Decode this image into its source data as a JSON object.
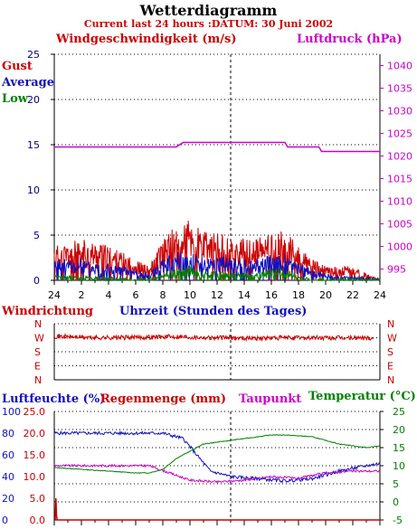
{
  "title": "Wetterdiagramm",
  "subtitle": "Current last 24 hours :DATUM: 30 Juni 2002",
  "colors": {
    "gust": "#cc0000",
    "average": "#1010c0",
    "low": "#008000",
    "pressure": "#cc00cc",
    "axis_left": "#000080",
    "axis_right": "#cc00cc",
    "humidity": "#1010c0",
    "rain": "#cc0000",
    "dew": "#cc00cc",
    "temp": "#008000"
  },
  "wind_panel": {
    "left_label": "Windgeschwindigkeit (m/s)",
    "right_label": "Luftdruck (hPa)",
    "legend": [
      "Gust",
      "Average",
      "Low"
    ],
    "y_ticks": [
      "25",
      "20",
      "15",
      "10",
      "5",
      "0"
    ],
    "p_ticks": [
      "1040",
      "1035",
      "1030",
      "1025",
      "1020",
      "1015",
      "1010",
      "1005",
      "1000",
      "995"
    ],
    "x_ticks": [
      "24",
      "2",
      "4",
      "6",
      "8",
      "10",
      "12",
      "14",
      "16",
      "18",
      "20",
      "22",
      "24"
    ]
  },
  "direction_panel": {
    "left_label": "Windrichtung",
    "center_label": "Uhrzeit (Stunden des Tages)",
    "dir_ticks": [
      "N",
      "W",
      "S",
      "E",
      "N"
    ]
  },
  "humidity_panel": {
    "label_humidity": "Luftfeuchte (%)",
    "label_rain": "Regenmenge (mm)",
    "label_dew": "Taupunkt",
    "label_temp": "Temperatur (",
    "label_temp_unit": "°C)",
    "hum_ticks": [
      "100",
      "80",
      "60",
      "40",
      "20",
      "0"
    ],
    "rain_ticks": [
      "25.0",
      "20.0",
      "15.0",
      "10.0",
      "5.0",
      "0.0"
    ],
    "temp_ticks": [
      "25",
      "20",
      "15",
      "10",
      "5",
      "0",
      "-5"
    ]
  },
  "chart_data": [
    {
      "type": "line",
      "title": "Windgeschwindigkeit (m/s) / Luftdruck (hPa)",
      "xlabel": "Uhrzeit (Stunden des Tages)",
      "ylim": [
        0,
        25
      ],
      "y2lim": [
        992.5,
        1042.5
      ],
      "series": [
        {
          "name": "Gust",
          "x": [
            0,
            2,
            4,
            6,
            7,
            8,
            9,
            10,
            11,
            12,
            13,
            14,
            15,
            16,
            17,
            18,
            19,
            20,
            21,
            22,
            23,
            24
          ],
          "values": [
            2.5,
            3,
            2.5,
            1.5,
            1,
            3,
            4,
            4.5,
            3.5,
            3.5,
            3,
            3,
            3,
            3.5,
            3.5,
            2.5,
            1.5,
            1,
            1,
            1,
            0.5,
            0
          ]
        },
        {
          "name": "Average",
          "x": [
            0,
            2,
            4,
            6,
            7,
            8,
            9,
            10,
            11,
            12,
            13,
            14,
            15,
            16,
            17,
            18,
            19,
            20,
            21,
            22,
            23,
            24
          ],
          "values": [
            1.5,
            1.5,
            1.2,
            0.8,
            0.5,
            1.5,
            2,
            2,
            1.8,
            1.8,
            1.5,
            1.5,
            1.5,
            1.8,
            1.8,
            1.2,
            0.8,
            0.5,
            0.3,
            0.3,
            0.2,
            0
          ]
        },
        {
          "name": "Low",
          "x": [
            0,
            2,
            4,
            6,
            7,
            8,
            9,
            10,
            11,
            12,
            13,
            14,
            15,
            16,
            17,
            18,
            19,
            20,
            21,
            22,
            23,
            24
          ],
          "values": [
            0.3,
            0.3,
            0.2,
            0,
            0,
            0.5,
            0.8,
            1,
            0.6,
            0.6,
            0.5,
            0.5,
            0.5,
            0.8,
            0.8,
            0.3,
            0,
            0,
            0,
            0,
            0,
            0
          ]
        },
        {
          "name": "Luftdruck",
          "axis": "right",
          "x": [
            0,
            9,
            9.5,
            10,
            17,
            17.2,
            19.5,
            19.7,
            24
          ],
          "values": [
            1022,
            1022,
            1023,
            1023,
            1023,
            1022,
            1022,
            1021,
            1021
          ]
        }
      ]
    },
    {
      "type": "line",
      "title": "Windrichtung",
      "ylim": [
        0,
        360
      ],
      "series": [
        {
          "name": "Windrichtung",
          "x": [
            0,
            3,
            6,
            9,
            12,
            15,
            18,
            21,
            23.5
          ],
          "values": [
            280,
            270,
            272,
            278,
            270,
            268,
            270,
            268,
            270
          ]
        }
      ]
    },
    {
      "type": "line",
      "title": "Luftfeuchte / Regenmenge / Taupunkt / Temperatur",
      "ylim": [
        0,
        100
      ],
      "y2lim": [
        -5,
        25
      ],
      "series": [
        {
          "name": "Luftfeuchte (%)",
          "axis": "left",
          "x": [
            0,
            2,
            5,
            8,
            9.5,
            10.5,
            11.5,
            13,
            15,
            17,
            19,
            21,
            23,
            24
          ],
          "values": [
            80,
            80,
            80,
            80,
            75,
            60,
            45,
            40,
            38,
            36,
            38,
            45,
            50,
            52
          ]
        },
        {
          "name": "Regenmenge (mm)",
          "axis": "rain",
          "x": [
            0,
            0.05,
            0.1,
            0.15,
            24
          ],
          "values": [
            0,
            5,
            1,
            0,
            0
          ]
        },
        {
          "name": "Taupunkt",
          "axis": "right",
          "x": [
            0,
            4,
            7,
            8.5,
            10,
            12,
            14,
            16,
            18,
            20,
            22,
            24
          ],
          "values": [
            10,
            10,
            10,
            8,
            6,
            5.5,
            6,
            7,
            6.5,
            8,
            8.5,
            8.5
          ]
        },
        {
          "name": "Temperatur (°C)",
          "axis": "right",
          "x": [
            0,
            2,
            4,
            6,
            7,
            8,
            9,
            11,
            13,
            15,
            16,
            17,
            19,
            21,
            22,
            23,
            24
          ],
          "values": [
            9.5,
            9,
            8.5,
            8,
            8,
            9,
            12,
            16,
            17,
            18,
            18.5,
            18.5,
            18,
            16,
            15.5,
            15,
            15.5
          ]
        }
      ]
    }
  ]
}
